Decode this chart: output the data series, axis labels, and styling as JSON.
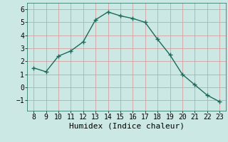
{
  "x": [
    8,
    9,
    10,
    11,
    12,
    13,
    14,
    15,
    16,
    17,
    18,
    19,
    20,
    21,
    22,
    23
  ],
  "y": [
    1.5,
    1.2,
    2.4,
    2.8,
    3.5,
    5.2,
    5.8,
    5.5,
    5.3,
    5.0,
    3.7,
    2.5,
    1.0,
    0.2,
    -0.6,
    -1.1
  ],
  "xlabel": "Humidex (Indice chaleur)",
  "ylim": [
    -1.8,
    6.5
  ],
  "xlim": [
    7.5,
    23.5
  ],
  "yticks": [
    -1,
    0,
    1,
    2,
    3,
    4,
    5,
    6
  ],
  "xticks": [
    8,
    9,
    10,
    11,
    12,
    13,
    14,
    15,
    16,
    17,
    18,
    19,
    20,
    21,
    22,
    23
  ],
  "line_color": "#1a6b5a",
  "marker_color": "#1a6b5a",
  "bg_color": "#cce8e4",
  "grid_color": "#b0d5cf",
  "font_family": "monospace",
  "tick_fontsize": 7,
  "xlabel_fontsize": 8
}
